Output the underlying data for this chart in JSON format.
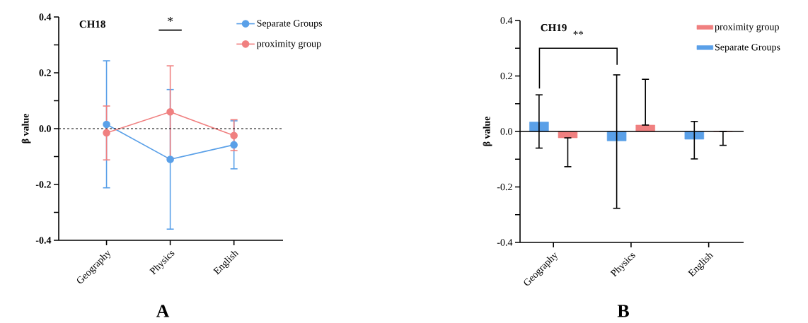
{
  "chart_data": [
    {
      "type": "line",
      "title": "CH18",
      "subtitle": "A",
      "ylabel": "β value",
      "categories": [
        "Geography",
        "Physics",
        "English"
      ],
      "series": [
        {
          "name": "Separate Groups",
          "color": "#5aa0e8",
          "values": [
            0.015,
            -0.11,
            -0.058
          ],
          "errors": [
            [
              -0.212,
              0.243
            ],
            [
              -0.36,
              0.14
            ],
            [
              -0.144,
              0.028
            ]
          ]
        },
        {
          "name": "proximity group",
          "color": "#f08080",
          "values": [
            -0.015,
            0.06,
            -0.025
          ],
          "errors": [
            [
              -0.112,
              0.081
            ],
            [
              -0.105,
              0.225
            ],
            [
              -0.079,
              0.032
            ]
          ]
        }
      ],
      "ylim": [
        -0.4,
        0.4
      ],
      "yticks": [
        -0.4,
        {
          "value": -0.3,
          "label": null
        },
        -0.2,
        {
          "value": -0.1,
          "label": null
        },
        {
          "value": 0,
          "label": "0.0"
        },
        {
          "value": 0.1,
          "label": null
        },
        0.2,
        {
          "value": 0.3,
          "label": null
        },
        0.4
      ],
      "ref_lines": [
        {
          "axis": "y",
          "value": 0,
          "line_style": "dashed",
          "color": "#000000"
        }
      ],
      "marker": "circle",
      "legend": "top right",
      "annotations": [
        "*"
      ]
    },
    {
      "type": "bar",
      "title": "CH19",
      "subtitle": "B",
      "ylabel": "β value",
      "categories": [
        "Geography",
        "Physics",
        "English"
      ],
      "series": [
        {
          "name": "Separate Groups",
          "color": "#5aa0e8",
          "values": [
            0.034,
            -0.034,
            -0.028
          ],
          "errors": [
            [
              -0.06,
              0.132
            ],
            [
              -0.277,
              0.204
            ],
            [
              -0.099,
              0.036
            ]
          ]
        },
        {
          "name": "proximity group",
          "color": "#f08080",
          "values": [
            -0.023,
            0.023,
            0.0
          ],
          "errors": [
            [
              -0.127,
              -0.023
            ],
            [
              0.023,
              0.188
            ],
            [
              -0.05,
              0.0
            ]
          ]
        }
      ],
      "ylim": [
        -0.4,
        0.4
      ],
      "yticks": [
        -0.4,
        {
          "value": -0.3,
          "label": null
        },
        -0.2,
        {
          "value": -0.1,
          "label": null
        },
        {
          "value": 0,
          "label": "0.0"
        },
        {
          "value": 0.1,
          "label": null
        },
        0.2,
        {
          "value": 0.3,
          "label": null
        },
        0.4
      ],
      "ref_lines": [
        {
          "axis": "y",
          "value": 0,
          "line_style": "solid",
          "color": "#000000"
        }
      ],
      "legend": "top right",
      "annotations": [
        "**"
      ]
    }
  ]
}
